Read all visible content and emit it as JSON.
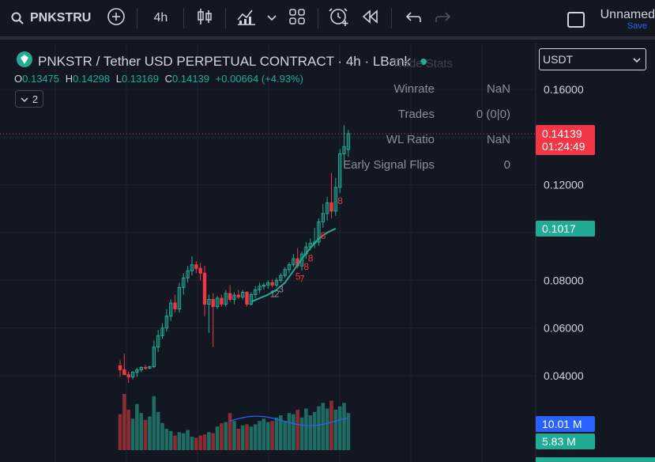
{
  "toolbar": {
    "symbol": "PNKSTRU",
    "interval": "4h",
    "layout_name": "Unnamed",
    "save_label": "Save"
  },
  "legend": {
    "title": "PNKSTR / Tether USD PERPETUAL CONTRACT · 4h · LBank",
    "open_label": "O",
    "open": "0.13475",
    "high_label": "H",
    "high": "0.14298",
    "low_label": "L",
    "low": "0.13169",
    "close_label": "C",
    "close": "0.14139",
    "change": "+0.00664 (+4.93%)",
    "indicators_count": "2"
  },
  "trade_stats": {
    "title": "Trade Stats",
    "rows": [
      {
        "label": "Winrate",
        "value": "NaN"
      },
      {
        "label": "Trades",
        "value": "0 (0|0)"
      },
      {
        "label": "WL Ratio",
        "value": "NaN"
      },
      {
        "label": "Early Signal Flips",
        "value": "0"
      }
    ]
  },
  "currency_select": {
    "value": "USDT"
  },
  "price_scale": {
    "ticks": [
      "0.16000",
      "0.12000",
      "0.08000",
      "0.06000",
      "0.04000"
    ],
    "last_price": "0.14139",
    "countdown": "01:24:49",
    "ma_value": "0.1017",
    "volume_label": "10.01 M",
    "volume_ma_label": "5.83 M"
  },
  "colors": {
    "background": "#131722",
    "up": "#22ab94",
    "down": "#f23645",
    "vol_up": "#1f6c63",
    "vol_down": "#8a2d33",
    "accent_blue": "#2962ff"
  },
  "chart_data": {
    "type": "candlestick",
    "interval": "4h",
    "candles": [
      [
        0.0442,
        0.0465,
        0.0395,
        0.0425
      ],
      [
        0.0425,
        0.0492,
        0.0405,
        0.0405
      ],
      [
        0.0405,
        0.0418,
        0.037,
        0.0395
      ],
      [
        0.0395,
        0.042,
        0.0385,
        0.0415
      ],
      [
        0.0415,
        0.0432,
        0.0395,
        0.0425
      ],
      [
        0.0425,
        0.044,
        0.0415,
        0.0435
      ],
      [
        0.0435,
        0.0445,
        0.0425,
        0.0432
      ],
      [
        0.0432,
        0.0442,
        0.0428,
        0.0438
      ],
      [
        0.0438,
        0.0548,
        0.0432,
        0.052
      ],
      [
        0.052,
        0.0592,
        0.05,
        0.0568
      ],
      [
        0.0568,
        0.062,
        0.0555,
        0.06
      ],
      [
        0.06,
        0.068,
        0.0585,
        0.065
      ],
      [
        0.065,
        0.072,
        0.063,
        0.0705
      ],
      [
        0.0705,
        0.074,
        0.0665,
        0.068
      ],
      [
        0.068,
        0.079,
        0.0665,
        0.077
      ],
      [
        0.077,
        0.083,
        0.074,
        0.081
      ],
      [
        0.081,
        0.086,
        0.079,
        0.084
      ],
      [
        0.084,
        0.09,
        0.082,
        0.0865
      ],
      [
        0.0865,
        0.088,
        0.083,
        0.085
      ],
      [
        0.085,
        0.0872,
        0.08,
        0.083
      ],
      [
        0.083,
        0.086,
        0.065,
        0.07
      ],
      [
        0.07,
        0.074,
        0.058,
        0.072
      ],
      [
        0.072,
        0.0745,
        0.052,
        0.069
      ],
      [
        0.069,
        0.0735,
        0.068,
        0.0725
      ],
      [
        0.0725,
        0.074,
        0.069,
        0.07
      ],
      [
        0.07,
        0.076,
        0.069,
        0.0745
      ],
      [
        0.0745,
        0.078,
        0.071,
        0.072
      ],
      [
        0.072,
        0.075,
        0.07,
        0.0738
      ],
      [
        0.0738,
        0.076,
        0.0722,
        0.073
      ],
      [
        0.073,
        0.076,
        0.072,
        0.075
      ],
      [
        0.075,
        0.0755,
        0.069,
        0.07
      ],
      [
        0.07,
        0.075,
        0.0695,
        0.074
      ],
      [
        0.074,
        0.0775,
        0.0725,
        0.076
      ],
      [
        0.076,
        0.079,
        0.0745,
        0.0775
      ],
      [
        0.0775,
        0.079,
        0.076,
        0.078
      ],
      [
        0.078,
        0.08,
        0.0765,
        0.079
      ],
      [
        0.079,
        0.0805,
        0.077,
        0.078
      ],
      [
        0.078,
        0.081,
        0.077,
        0.08
      ],
      [
        0.08,
        0.083,
        0.079,
        0.082
      ],
      [
        0.082,
        0.0855,
        0.081,
        0.0845
      ],
      [
        0.0845,
        0.0875,
        0.083,
        0.0865
      ],
      [
        0.0865,
        0.091,
        0.0855,
        0.089
      ],
      [
        0.089,
        0.0935,
        0.085,
        0.086
      ],
      [
        0.086,
        0.092,
        0.084,
        0.091
      ],
      [
        0.091,
        0.096,
        0.089,
        0.094
      ],
      [
        0.094,
        0.0975,
        0.0925,
        0.0955
      ],
      [
        0.0955,
        0.102,
        0.0935,
        0.096
      ],
      [
        0.096,
        0.106,
        0.0945,
        0.1045
      ],
      [
        0.1045,
        0.112,
        0.102,
        0.108
      ],
      [
        0.108,
        0.115,
        0.105,
        0.1125
      ],
      [
        0.1125,
        0.125,
        0.106,
        0.109
      ],
      [
        0.109,
        0.123,
        0.107,
        0.119
      ],
      [
        0.119,
        0.135,
        0.1165,
        0.133
      ],
      [
        0.133,
        0.145,
        0.13,
        0.136
      ],
      [
        0.1348,
        0.143,
        0.1317,
        0.1414
      ]
    ],
    "volumes": [
      3.2,
      5.0,
      3.6,
      2.8,
      4.1,
      3.3,
      2.7,
      3.0,
      4.8,
      3.4,
      2.4,
      1.9,
      1.7,
      1.3,
      1.6,
      1.5,
      1.8,
      1.2,
      1.1,
      1.3,
      1.4,
      1.6,
      1.5,
      2.1,
      2.4,
      2.5,
      3.3,
      2.6,
      1.9,
      2.2,
      2.3,
      2.1,
      2.3,
      2.6,
      2.8,
      2.5,
      2.6,
      2.9,
      3.1,
      2.6,
      3.3,
      3.2,
      3.6,
      2.9,
      3.7,
      3.1,
      3.4,
      3.9,
      4.2,
      3.7,
      4.4,
      3.6,
      3.9,
      4.2,
      3.3
    ],
    "ma_line": [
      [
        31,
        0.071
      ],
      [
        33,
        0.0725
      ],
      [
        35,
        0.074
      ],
      [
        37,
        0.076
      ],
      [
        39,
        0.079
      ],
      [
        41,
        0.084
      ],
      [
        43,
        0.089
      ],
      [
        45,
        0.0935
      ],
      [
        47,
        0.0975
      ],
      [
        49,
        0.1
      ],
      [
        51,
        0.1017
      ]
    ],
    "sequence_labels": [
      {
        "i": 36,
        "t": "1",
        "above": false
      },
      {
        "i": 37,
        "t": "2",
        "above": false
      },
      {
        "i": 38,
        "t": "3",
        "above": false
      },
      {
        "i": 42,
        "t": "5",
        "above": true,
        "red": true
      },
      {
        "i": 43,
        "t": "7",
        "above": true,
        "red": true
      },
      {
        "i": 44,
        "t": "8",
        "above": true,
        "red": true
      },
      {
        "i": 45,
        "t": "8",
        "above": true,
        "red": true
      },
      {
        "i": 48,
        "t": "8",
        "above": true,
        "red": true
      },
      {
        "i": 52,
        "t": "8",
        "above": true,
        "red": true
      }
    ],
    "ylim": [
      0.032,
      0.168
    ]
  }
}
